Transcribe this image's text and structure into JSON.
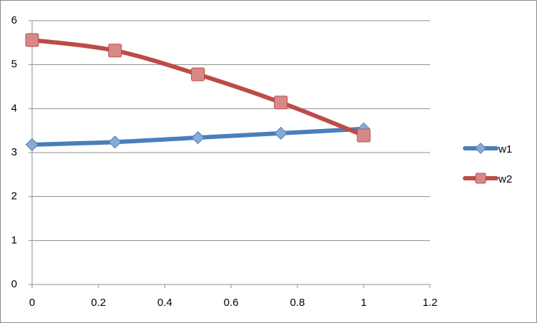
{
  "chart_data": {
    "type": "line",
    "smooth": true,
    "x": [
      0,
      0.25,
      0.5,
      0.75,
      1
    ],
    "series": [
      {
        "name": "w1",
        "color": "#4a7ebb",
        "marker": "diamond",
        "values": [
          3.18,
          3.24,
          3.34,
          3.44,
          3.54
        ]
      },
      {
        "name": "w2",
        "color": "#be4b48",
        "marker": "square",
        "values": [
          5.56,
          5.32,
          4.78,
          4.14,
          3.39
        ]
      }
    ],
    "xlim": [
      0,
      1.2
    ],
    "xticks": [
      0,
      0.2,
      0.4,
      0.6,
      0.8,
      1,
      1.2
    ],
    "ylim": [
      0,
      6
    ],
    "yticks": [
      0,
      1,
      2,
      3,
      4,
      5,
      6
    ],
    "grid": true,
    "legend": "right"
  }
}
